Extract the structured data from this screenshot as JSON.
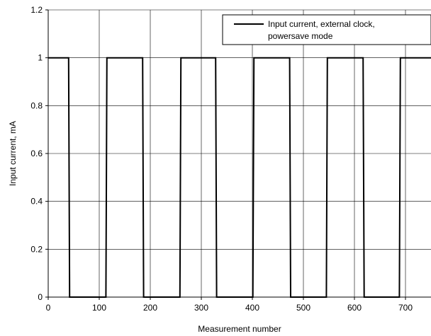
{
  "chart_data": {
    "type": "line",
    "xlabel": "Measurement number",
    "ylabel": "Input current, mA",
    "xlim": [
      0,
      750
    ],
    "ylim": [
      0,
      1.2
    ],
    "x_ticks": [
      0,
      100,
      200,
      300,
      400,
      500,
      600,
      700
    ],
    "y_ticks": [
      0,
      0.2,
      0.4,
      0.6,
      0.8,
      1,
      1.2
    ],
    "x_tick_labels": [
      "0",
      "100",
      "200",
      "300",
      "400",
      "500",
      "600",
      "700"
    ],
    "y_tick_labels": [
      "0",
      "0.2",
      "0.4",
      "0.6",
      "0.8",
      "1",
      "1.2"
    ],
    "grid": true,
    "legend_position": "top-right",
    "legend_lines": [
      "Input  current, external clock,",
      "powersave mode"
    ],
    "series": [
      {
        "name": "Input  current, external clock, powersave mode",
        "color": "#000000",
        "x": [
          0,
          40,
          42,
          113,
          115,
          185,
          187,
          258,
          260,
          328,
          330,
          401,
          403,
          473,
          475,
          545,
          547,
          617,
          619,
          688,
          690,
          750
        ],
        "y": [
          1,
          1,
          0,
          0,
          1,
          1,
          0,
          0,
          1,
          1,
          0,
          0,
          1,
          1,
          0,
          0,
          1,
          1,
          0,
          0,
          1,
          1
        ]
      }
    ]
  }
}
